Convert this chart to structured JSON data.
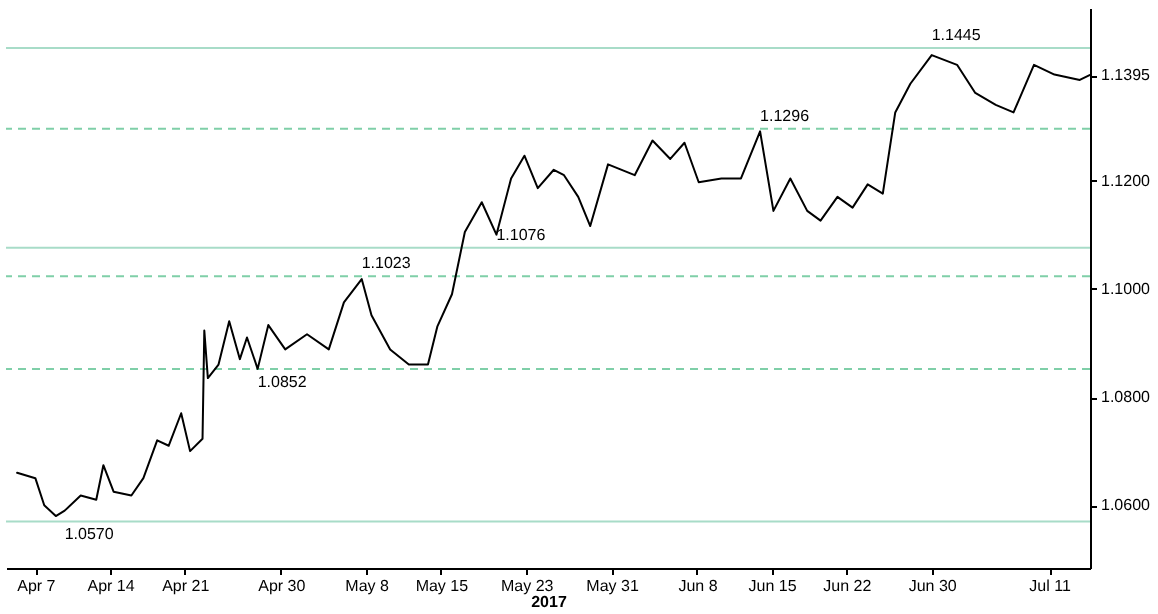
{
  "chart_data": {
    "type": "line",
    "xlabel": "2017",
    "xlim": [
      "2017-04-04T06:00",
      "2017-07-14T20:00"
    ],
    "ylim": [
      1.0484,
      1.1519
    ],
    "xticks": [
      {
        "value": "2017-04-07",
        "label": "Apr 7"
      },
      {
        "value": "2017-04-14",
        "label": "Apr 14"
      },
      {
        "value": "2017-04-21",
        "label": "Apr 21"
      },
      {
        "value": "2017-04-30",
        "label": "Apr 30"
      },
      {
        "value": "2017-05-08",
        "label": "May 8"
      },
      {
        "value": "2017-05-15",
        "label": "May 15"
      },
      {
        "value": "2017-05-23",
        "label": "May 23"
      },
      {
        "value": "2017-05-31",
        "label": "May 31"
      },
      {
        "value": "2017-06-08",
        "label": "Jun 8"
      },
      {
        "value": "2017-06-15",
        "label": "Jun 15"
      },
      {
        "value": "2017-06-22",
        "label": "Jun 22"
      },
      {
        "value": "2017-06-30",
        "label": "Jun 30"
      },
      {
        "value": "2017-07-11",
        "label": "Jul 11"
      }
    ],
    "yticks": [
      {
        "value": 1.06,
        "label": "1.0600"
      },
      {
        "value": 1.08,
        "label": "1.0800"
      },
      {
        "value": 1.1,
        "label": "1.1000"
      },
      {
        "value": 1.12,
        "label": "1.1200"
      },
      {
        "value": 1.1395,
        "label": "1.1395"
      }
    ],
    "marker": "none",
    "line_style": "solid",
    "x": [
      "2017-04-05T07:00",
      "2017-04-07",
      "2017-04-07T20:00",
      "2017-04-08T22:00",
      "2017-04-09T18:00",
      "2017-04-11T06:00",
      "2017-04-12T17:00",
      "2017-04-13T09:00",
      "2017-04-14T08:00",
      "2017-04-16",
      "2017-04-17T03:00",
      "2017-04-18T10:00",
      "2017-04-19T12:00",
      "2017-04-20T16:00",
      "2017-04-21T12:00",
      "2017-04-22T16:00",
      "2017-04-22T20:00",
      "2017-04-23T04:00",
      "2017-04-24T04:00",
      "2017-04-25T04:00",
      "2017-04-26T04:00",
      "2017-04-26T20:00",
      "2017-04-27T20:00",
      "2017-04-28T20:00",
      "2017-04-30T10:00",
      "2017-05-02T11:00",
      "2017-05-04T12:00",
      "2017-05-05T22:00",
      "2017-05-07T14:00",
      "2017-05-08T12:00",
      "2017-05-10T06:00",
      "2017-05-12",
      "2017-05-13T19:00",
      "2017-05-14T16:00",
      "2017-05-16T01:00",
      "2017-05-17T06:00",
      "2017-05-18T20:00",
      "2017-05-20T05:00",
      "2017-05-21T14:00",
      "2017-05-22T20:00",
      "2017-05-24T02:00",
      "2017-05-25T14:00",
      "2017-05-26T13:00",
      "2017-05-27T21:00",
      "2017-05-29",
      "2017-05-30T16:00",
      "2017-06-02T04:00",
      "2017-06-03T20:00",
      "2017-06-05T12:00",
      "2017-06-06T20:00",
      "2017-06-08T04:00",
      "2017-06-10T07:00",
      "2017-06-12T03:00",
      "2017-06-13T22:00",
      "2017-06-15T04:00",
      "2017-06-16T18:00",
      "2017-06-18T08:00",
      "2017-06-19T14:00",
      "2017-06-21T04:00",
      "2017-06-22T14:00",
      "2017-06-24",
      "2017-06-25T10:00",
      "2017-06-26T14:00",
      "2017-06-28",
      "2017-06-30",
      "2017-07-02T09:00",
      "2017-07-04T02:00",
      "2017-07-06",
      "2017-07-07T16:00",
      "2017-07-09T14:00",
      "2017-07-11T12:00",
      "2017-07-13T21:00",
      "2017-07-14T19:00"
    ],
    "series": [
      {
        "color": "#000000",
        "values": [
          1.066,
          1.065,
          1.06,
          1.058,
          1.059,
          1.0618,
          1.061,
          1.0674,
          1.0625,
          1.0618,
          1.065,
          1.072,
          1.071,
          1.077,
          1.07,
          1.0723,
          1.0923,
          1.0835,
          1.086,
          1.094,
          1.087,
          1.091,
          1.0852,
          1.0933,
          1.0888,
          1.0916,
          1.0888,
          1.0975,
          1.1018,
          1.0951,
          1.0888,
          1.086,
          1.086,
          1.093,
          1.099,
          1.1105,
          1.116,
          1.11,
          1.1204,
          1.1246,
          1.1186,
          1.122,
          1.121,
          1.117,
          1.1116,
          1.123,
          1.121,
          1.1274,
          1.124,
          1.127,
          1.1197,
          1.1204,
          1.1204,
          1.1291,
          1.1144,
          1.1204,
          1.1144,
          1.1126,
          1.117,
          1.115,
          1.1193,
          1.1176,
          1.1326,
          1.1379,
          1.1432,
          1.1414,
          1.1362,
          1.134,
          1.1326,
          1.1414,
          1.1396,
          1.1386,
          1.1395
        ]
      }
    ],
    "ref_lines": [
      {
        "axis": "y",
        "value": 1.057,
        "color": "#a8dcc8",
        "line_style": "solid"
      },
      {
        "axis": "y",
        "value": 1.0852,
        "color": "#7fcfa8",
        "line_style": "dashed"
      },
      {
        "axis": "y",
        "value": 1.1023,
        "color": "#7fcfa8",
        "line_style": "dashed"
      },
      {
        "axis": "y",
        "value": 1.1076,
        "color": "#a8dcc8",
        "line_style": "solid"
      },
      {
        "axis": "y",
        "value": 1.1296,
        "color": "#7fcfa8",
        "line_style": "dashed"
      },
      {
        "axis": "y",
        "value": 1.1445,
        "color": "#a8dcc8",
        "line_style": "solid"
      }
    ],
    "annotations": [
      {
        "text": "1.0570",
        "x": "2017-04-09T18:00",
        "y": 1.057
      },
      {
        "text": "1.0852",
        "x": "2017-04-27T20:00",
        "y": 1.0852
      },
      {
        "text": "1.1023",
        "x": "2017-05-07T14:00",
        "y": 1.1023
      },
      {
        "text": "1.1076",
        "x": "2017-05-20T05:00",
        "y": 1.1076
      },
      {
        "text": "1.1296",
        "x": "2017-06-13T22:00",
        "y": 1.1296
      },
      {
        "text": "1.1445",
        "x": "2017-06-30",
        "y": 1.1445
      }
    ]
  }
}
